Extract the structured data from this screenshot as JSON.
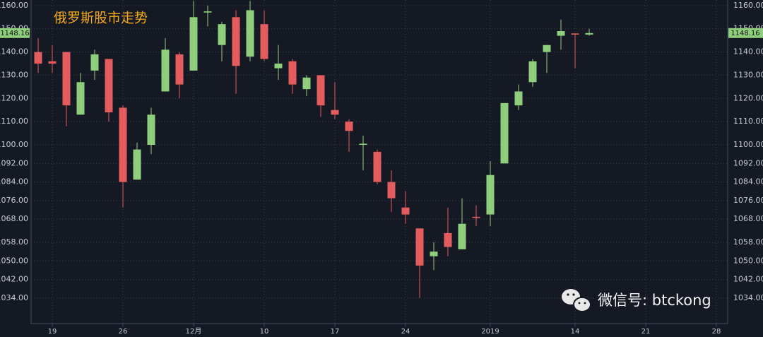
{
  "chart_data": {
    "type": "candlestick",
    "title": "俄罗斯股市走势",
    "watermark": "微信号: btckong",
    "open": [
      1140,
      1136,
      1140,
      1113,
      1132,
      1137,
      1116,
      1085,
      1100,
      1123,
      1139,
      1132,
      1157,
      1143,
      1155,
      1138,
      1152,
      1133,
      1136,
      1124,
      1130,
      1115,
      1110,
      1100,
      1097,
      1084,
      1073,
      1064,
      1052,
      1062,
      1055,
      1069,
      1070,
      1092,
      1117,
      1127,
      1140,
      1147,
      1148,
      1147.5
    ],
    "high": [
      1146,
      1143,
      1140,
      1131,
      1141,
      1137,
      1117,
      1101,
      1116,
      1146,
      1140,
      1162,
      1160,
      1153,
      1158,
      1162,
      1158,
      1143,
      1137,
      1130,
      1130,
      1127,
      1111,
      1104,
      1098,
      1089,
      1080,
      1064,
      1058,
      1073,
      1077,
      1074,
      1093,
      1118,
      1126,
      1137,
      1143,
      1154,
      1148,
      1150
    ],
    "low": [
      1131,
      1131,
      1108,
      1113,
      1128,
      1110,
      1073,
      1085,
      1096,
      1123,
      1120,
      1132,
      1151,
      1136,
      1122,
      1136,
      1136,
      1128,
      1122,
      1121,
      1112,
      1111,
      1097,
      1089,
      1083,
      1071,
      1066,
      1034,
      1046,
      1052,
      1055,
      1065,
      1065,
      1092,
      1115,
      1125,
      1131,
      1141,
      1133,
      1147
    ],
    "close": [
      1135,
      1135,
      1117,
      1127,
      1139,
      1114,
      1084,
      1098,
      1113,
      1141,
      1126,
      1155,
      1157.5,
      1152,
      1134,
      1158,
      1137,
      1135,
      1126,
      1129,
      1117,
      1113,
      1106,
      1100.5,
      1084,
      1077,
      1070,
      1048,
      1054,
      1056,
      1066,
      1068.5,
      1087,
      1118,
      1123,
      1136,
      1143,
      1149,
      1147.5,
      1148.16
    ],
    "up_color": "#8fce7c",
    "down_color": "#e35d5f",
    "ylim": [
      1023,
      1162.4
    ],
    "yticks": [
      {
        "value": 1160,
        "label": "1160.00"
      },
      {
        "value": 1150,
        "label": "1150.00"
      },
      {
        "value": 1140,
        "label": "1140.00"
      },
      {
        "value": 1130,
        "label": "1130.00"
      },
      {
        "value": 1120,
        "label": "1120.00"
      },
      {
        "value": 1110,
        "label": "1110.00"
      },
      {
        "value": 1100,
        "label": "1100.00"
      },
      {
        "value": 1092,
        "label": "1092.00"
      },
      {
        "value": 1084,
        "label": "1084.00"
      },
      {
        "value": 1076,
        "label": "1076.00"
      },
      {
        "value": 1068,
        "label": "1068.00"
      },
      {
        "value": 1058,
        "label": "1058.00"
      },
      {
        "value": 1050,
        "label": "1050.00"
      },
      {
        "value": 1042,
        "label": "1042.00"
      },
      {
        "value": 1034,
        "label": "1034.00"
      }
    ],
    "xlim": [
      -0.5,
      48.8
    ],
    "xticks": [
      {
        "value": 1,
        "label": "19"
      },
      {
        "value": 6,
        "label": "26"
      },
      {
        "value": 11,
        "label": "12月"
      },
      {
        "value": 16,
        "label": "10"
      },
      {
        "value": 21,
        "label": "17"
      },
      {
        "value": 26,
        "label": "24"
      },
      {
        "value": 32,
        "label": "2019"
      },
      {
        "value": 38,
        "label": "14"
      },
      {
        "value": 43,
        "label": "21"
      },
      {
        "value": 48,
        "label": "28"
      }
    ],
    "last_price": {
      "value": 1148.16,
      "label": "1148.16"
    },
    "grid": true
  }
}
